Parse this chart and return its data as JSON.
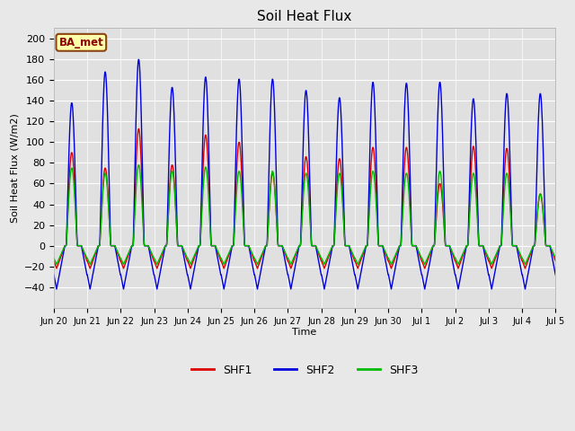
{
  "title": "Soil Heat Flux",
  "ylabel": "Soil Heat Flux (W/m2)",
  "xlabel": "Time",
  "ylim": [
    -60,
    210
  ],
  "yticks": [
    -40,
    -20,
    0,
    20,
    40,
    60,
    80,
    100,
    120,
    140,
    160,
    180,
    200
  ],
  "bg_color": "#e8e8e8",
  "plot_bg_color": "#e0e0e0",
  "series_colors": {
    "SHF1": "#dd0000",
    "SHF2": "#0000dd",
    "SHF3": "#00bb00"
  },
  "annotation_text": "BA_met",
  "annotation_bg": "#ffffaa",
  "annotation_border": "#8b4513",
  "n_days": 15,
  "points_per_day": 96,
  "shf1_peaks": [
    90,
    75,
    113,
    78,
    107,
    100,
    70,
    86,
    84,
    95,
    95,
    60,
    96,
    94,
    50
  ],
  "shf2_peaks": [
    138,
    168,
    180,
    153,
    163,
    161,
    161,
    150,
    143,
    158,
    157,
    158,
    142,
    147,
    147
  ],
  "shf3_peaks": [
    75,
    70,
    78,
    72,
    76,
    72,
    72,
    70,
    70,
    72,
    70,
    72,
    70,
    70,
    50
  ],
  "shf1_min": -22,
  "shf2_min": -42,
  "shf3_min": -18,
  "tick_labels": [
    "Jun 20",
    "Jun 21",
    "Jun 22",
    "Jun 23",
    "Jun 24",
    "Jun 25",
    "Jun 26",
    "Jun 27",
    "Jun 28",
    "Jun 29",
    "Jun 30",
    "Jul 1",
    "Jul 2",
    "Jul 3",
    "Jul 4",
    "Jul 5"
  ],
  "line_width": 1.0
}
